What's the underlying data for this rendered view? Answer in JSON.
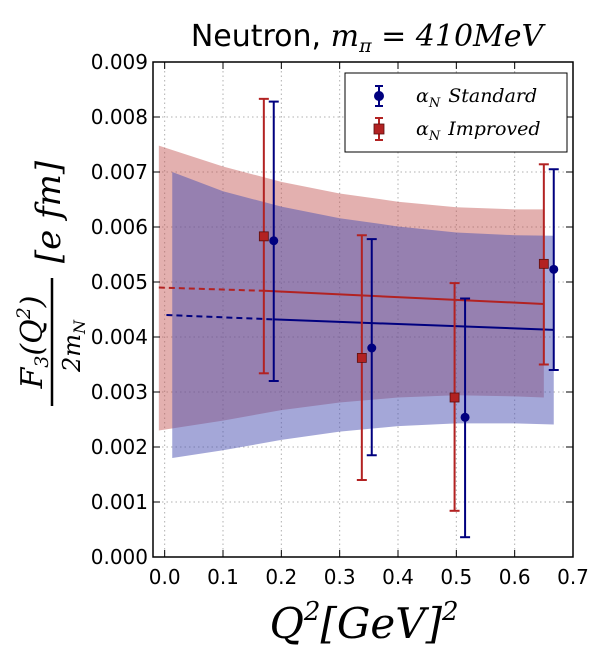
{
  "chart_data": {
    "type": "scatter",
    "title": {
      "prefix": "Neutron, ",
      "math": "m",
      "math_sub": "π",
      "math_rest": " = 410",
      "math_unit": "MeV"
    },
    "xlabel": {
      "main": "Q",
      "sup": "2",
      "rest": "[GeV]",
      "sup2": "2"
    },
    "ylabel": {
      "numerator": "F",
      "num_sub": "3",
      "num_rest": "(Q",
      "num_sup": "2",
      "num_close": ")",
      "denominator": "2m",
      "den_sub": "N",
      "unit": "[e fm]"
    },
    "xlim": [
      -0.02,
      0.7
    ],
    "ylim": [
      0.0,
      0.009
    ],
    "x_ticks": [
      "0.0",
      "0.1",
      "0.2",
      "0.3",
      "0.4",
      "0.5",
      "0.6",
      "0.7"
    ],
    "x_tick_values": [
      0.0,
      0.1,
      0.2,
      0.3,
      0.4,
      0.5,
      0.6,
      0.7
    ],
    "y_ticks": [
      "0.000",
      "0.001",
      "0.002",
      "0.003",
      "0.004",
      "0.005",
      "0.006",
      "0.007",
      "0.008",
      "0.009"
    ],
    "y_tick_values": [
      0.0,
      0.001,
      0.002,
      0.003,
      0.004,
      0.005,
      0.006,
      0.007,
      0.008,
      0.009
    ],
    "grid": true,
    "legend_position": "top-right",
    "series": [
      {
        "name_math": "α",
        "name_sub": "N",
        "name_text": "Standard",
        "color": "#00007f",
        "marker": "circle",
        "points": [
          {
            "x": 0.187,
            "y": 0.00575,
            "yerr_low": 0.0032,
            "yerr_high": 0.00828
          },
          {
            "x": 0.355,
            "y": 0.0038,
            "yerr_low": 0.00185,
            "yerr_high": 0.00578
          },
          {
            "x": 0.515,
            "y": 0.00254,
            "yerr_low": 0.00036,
            "yerr_high": 0.0047
          },
          {
            "x": 0.667,
            "y": 0.00523,
            "yerr_low": 0.0034,
            "yerr_high": 0.00705
          }
        ],
        "fit_dashed": {
          "x": [
            0.003,
            0.187
          ],
          "y": [
            0.0044,
            0.00432
          ]
        },
        "fit_solid": {
          "x": [
            0.187,
            0.667
          ],
          "y": [
            0.00432,
            0.00413
          ]
        },
        "band": {
          "x": [
            0.013,
            0.1,
            0.2,
            0.3,
            0.4,
            0.5,
            0.6,
            0.667
          ],
          "upper": [
            0.007,
            0.00665,
            0.00637,
            0.00616,
            0.00601,
            0.0059,
            0.00585,
            0.00584
          ],
          "lower": [
            0.0018,
            0.00194,
            0.00213,
            0.00228,
            0.00238,
            0.00243,
            0.00243,
            0.00241
          ]
        }
      },
      {
        "name_math": "α",
        "name_sub": "N",
        "name_text": "Improved",
        "color": "#b22222",
        "marker": "square",
        "points": [
          {
            "x": 0.17,
            "y": 0.00583,
            "yerr_low": 0.00334,
            "yerr_high": 0.00833
          },
          {
            "x": 0.338,
            "y": 0.00362,
            "yerr_low": 0.0014,
            "yerr_high": 0.00585
          },
          {
            "x": 0.497,
            "y": 0.0029,
            "yerr_low": 0.00084,
            "yerr_high": 0.00498
          },
          {
            "x": 0.65,
            "y": 0.00533,
            "yerr_low": 0.0035,
            "yerr_high": 0.00714
          }
        ],
        "fit_dashed": {
          "x": [
            -0.01,
            0.17
          ],
          "y": [
            0.0049,
            0.00484
          ]
        },
        "fit_solid": {
          "x": [
            0.17,
            0.65
          ],
          "y": [
            0.00484,
            0.0046
          ]
        },
        "band": {
          "x": [
            -0.01,
            0.1,
            0.2,
            0.3,
            0.4,
            0.5,
            0.6,
            0.65
          ],
          "upper": [
            0.00748,
            0.0071,
            0.00682,
            0.00661,
            0.00646,
            0.00636,
            0.00632,
            0.00632
          ],
          "lower": [
            0.0023,
            0.00248,
            0.00267,
            0.00281,
            0.0029,
            0.00294,
            0.00292,
            0.0029
          ]
        }
      }
    ]
  }
}
